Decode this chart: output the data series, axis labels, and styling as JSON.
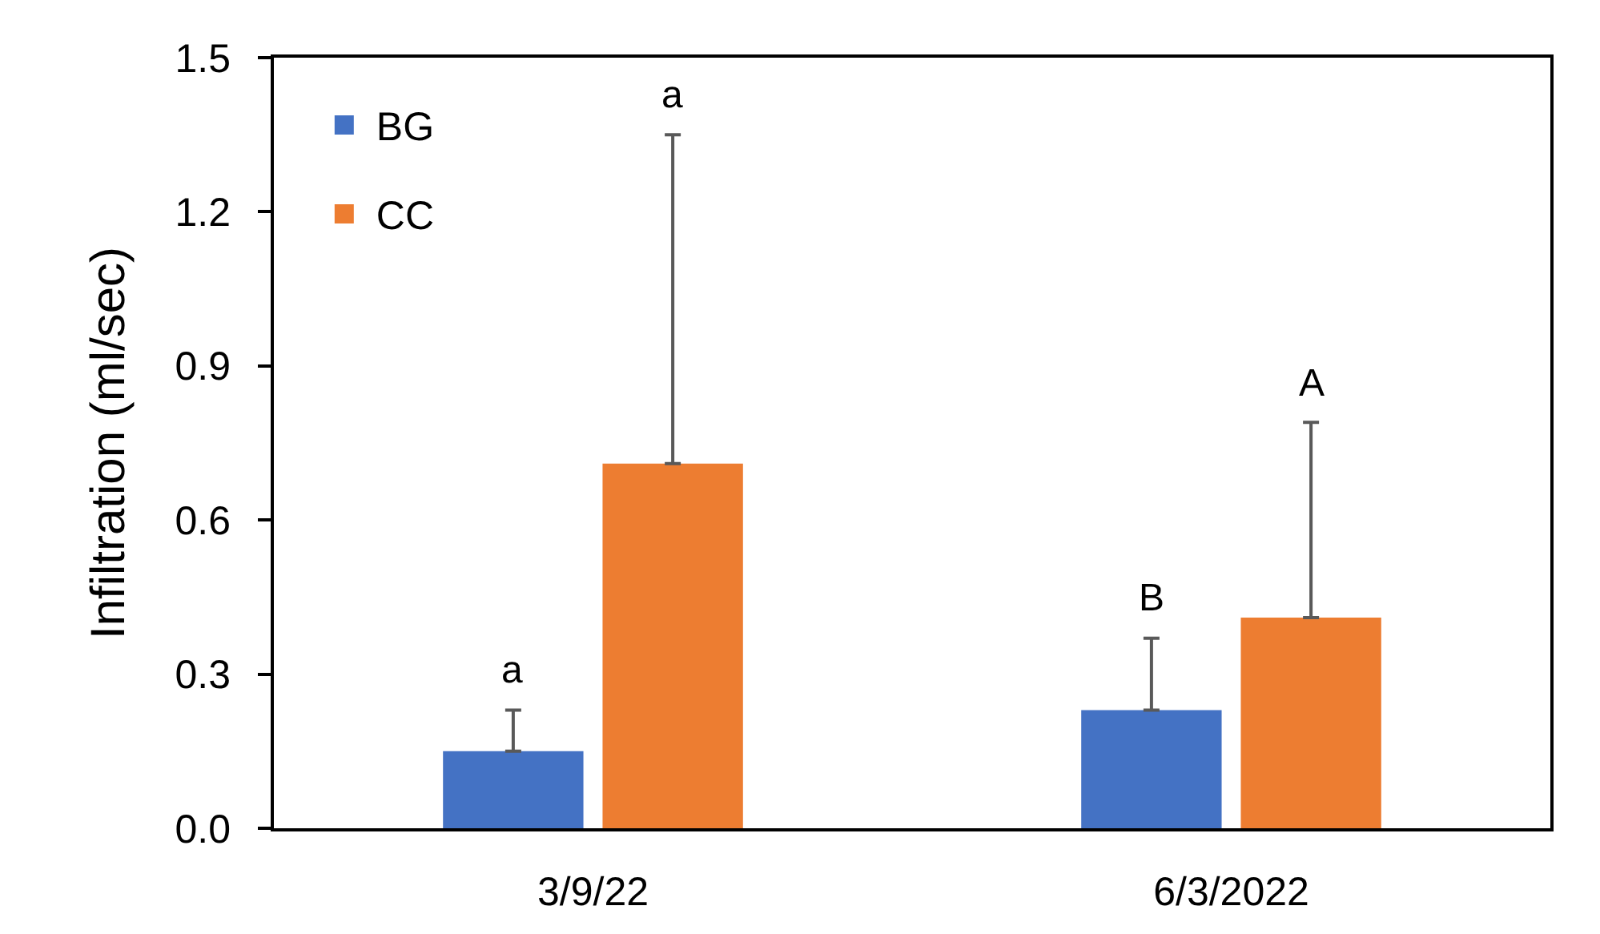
{
  "chart_data": {
    "type": "bar",
    "ylabel": "Infiltration (ml/sec)",
    "categories": [
      "3/9/22",
      "6/3/2022"
    ],
    "series": [
      {
        "name": "BG",
        "color": "#4472c4",
        "values": [
          0.15,
          0.23
        ],
        "errors": [
          [
            0.15,
            0.23
          ],
          [
            0.23,
            0.37
          ]
        ]
      },
      {
        "name": "CC",
        "color": "#ed7d31",
        "values": [
          0.71,
          0.41
        ],
        "errors": [
          [
            0.71,
            1.35
          ],
          [
            0.41,
            0.79
          ]
        ]
      }
    ],
    "annotations": [
      "a",
      "a",
      "B",
      "A"
    ],
    "ylim": [
      0,
      1.5
    ],
    "yticks": [
      {
        "value": 0,
        "label": "0.0"
      },
      0.3,
      0.6,
      0.9,
      1.2,
      1.5
    ],
    "grid": false,
    "legend": "top left"
  }
}
